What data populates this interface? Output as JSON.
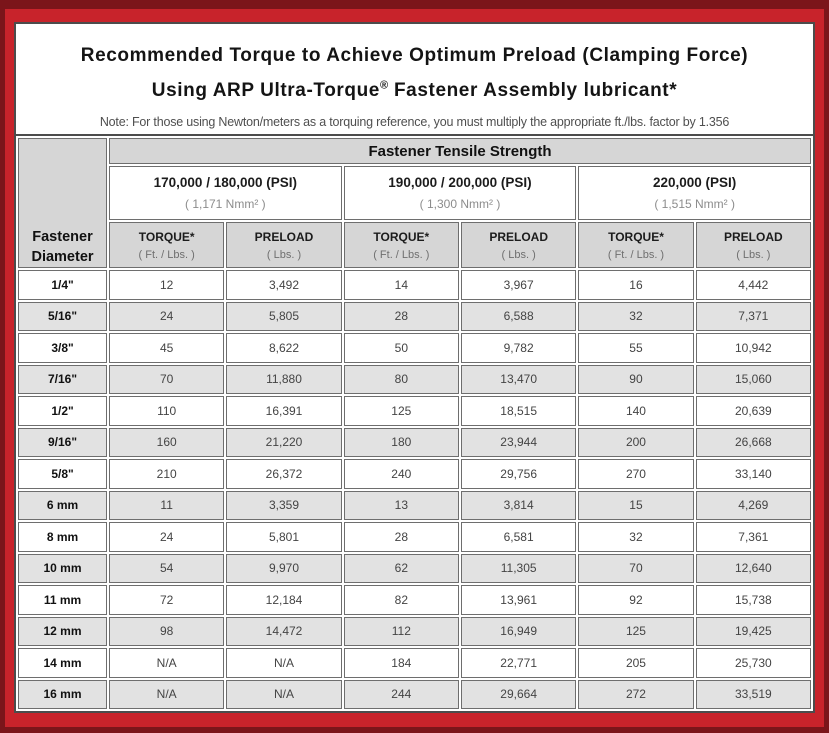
{
  "colors": {
    "frame_outer_maroon": "#7b151a",
    "frame_inner_red": "#c8232b",
    "header_gray": "#d6d6d6",
    "stripe_gray": "#e2e2e2",
    "cell_border": "#6e6e6e"
  },
  "title": {
    "line1": "Recommended Torque to Achieve Optimum Preload (Clamping Force)",
    "line2_a": "Using ARP Ultra-Torque",
    "line2_sup": "®",
    "line2_b": " Fastener Assembly lubricant*",
    "note": "Note: For those using Newton/meters as a torquing reference, you must multiply the appropriate ft./lbs. factor by 1.356"
  },
  "table": {
    "corner_line1": "Fastener",
    "corner_line2": "Diameter",
    "group_header": "Fastener Tensile Strength",
    "strength_groups": [
      {
        "psi": "170,000 / 180,000 (PSI)",
        "nmm": "( 1,171 Nmm² )"
      },
      {
        "psi": "190,000 / 200,000 (PSI)",
        "nmm": "( 1,300 Nmm² )"
      },
      {
        "psi": "220,000 (PSI)",
        "nmm": "( 1,515 Nmm² )"
      }
    ],
    "column_headers": [
      {
        "label": "TORQUE*",
        "unit": "( Ft. / Lbs. )"
      },
      {
        "label": "PRELOAD",
        "unit": "( Lbs. )"
      },
      {
        "label": "TORQUE*",
        "unit": "( Ft. / Lbs. )"
      },
      {
        "label": "PRELOAD",
        "unit": "( Lbs. )"
      },
      {
        "label": "TORQUE*",
        "unit": "( Ft. / Lbs. )"
      },
      {
        "label": "PRELOAD",
        "unit": "( Lbs. )"
      }
    ],
    "rows": [
      {
        "diameter": "1/4\"",
        "values": [
          "12",
          "3,492",
          "14",
          "3,967",
          "16",
          "4,442"
        ]
      },
      {
        "diameter": "5/16\"",
        "values": [
          "24",
          "5,805",
          "28",
          "6,588",
          "32",
          "7,371"
        ]
      },
      {
        "diameter": "3/8\"",
        "values": [
          "45",
          "8,622",
          "50",
          "9,782",
          "55",
          "10,942"
        ]
      },
      {
        "diameter": "7/16\"",
        "values": [
          "70",
          "11,880",
          "80",
          "13,470",
          "90",
          "15,060"
        ]
      },
      {
        "diameter": "1/2\"",
        "values": [
          "110",
          "16,391",
          "125",
          "18,515",
          "140",
          "20,639"
        ]
      },
      {
        "diameter": "9/16\"",
        "values": [
          "160",
          "21,220",
          "180",
          "23,944",
          "200",
          "26,668"
        ]
      },
      {
        "diameter": "5/8\"",
        "values": [
          "210",
          "26,372",
          "240",
          "29,756",
          "270",
          "33,140"
        ]
      },
      {
        "diameter": "6 mm",
        "values": [
          "11",
          "3,359",
          "13",
          "3,814",
          "15",
          "4,269"
        ]
      },
      {
        "diameter": "8 mm",
        "values": [
          "24",
          "5,801",
          "28",
          "6,581",
          "32",
          "7,361"
        ]
      },
      {
        "diameter": "10 mm",
        "values": [
          "54",
          "9,970",
          "62",
          "11,305",
          "70",
          "12,640"
        ]
      },
      {
        "diameter": "11 mm",
        "values": [
          "72",
          "12,184",
          "82",
          "13,961",
          "92",
          "15,738"
        ]
      },
      {
        "diameter": "12 mm",
        "values": [
          "98",
          "14,472",
          "112",
          "16,949",
          "125",
          "19,425"
        ]
      },
      {
        "diameter": "14 mm",
        "values": [
          "N/A",
          "N/A",
          "184",
          "22,771",
          "205",
          "25,730"
        ]
      },
      {
        "diameter": "16 mm",
        "values": [
          "N/A",
          "N/A",
          "244",
          "29,664",
          "272",
          "33,519"
        ]
      }
    ]
  }
}
